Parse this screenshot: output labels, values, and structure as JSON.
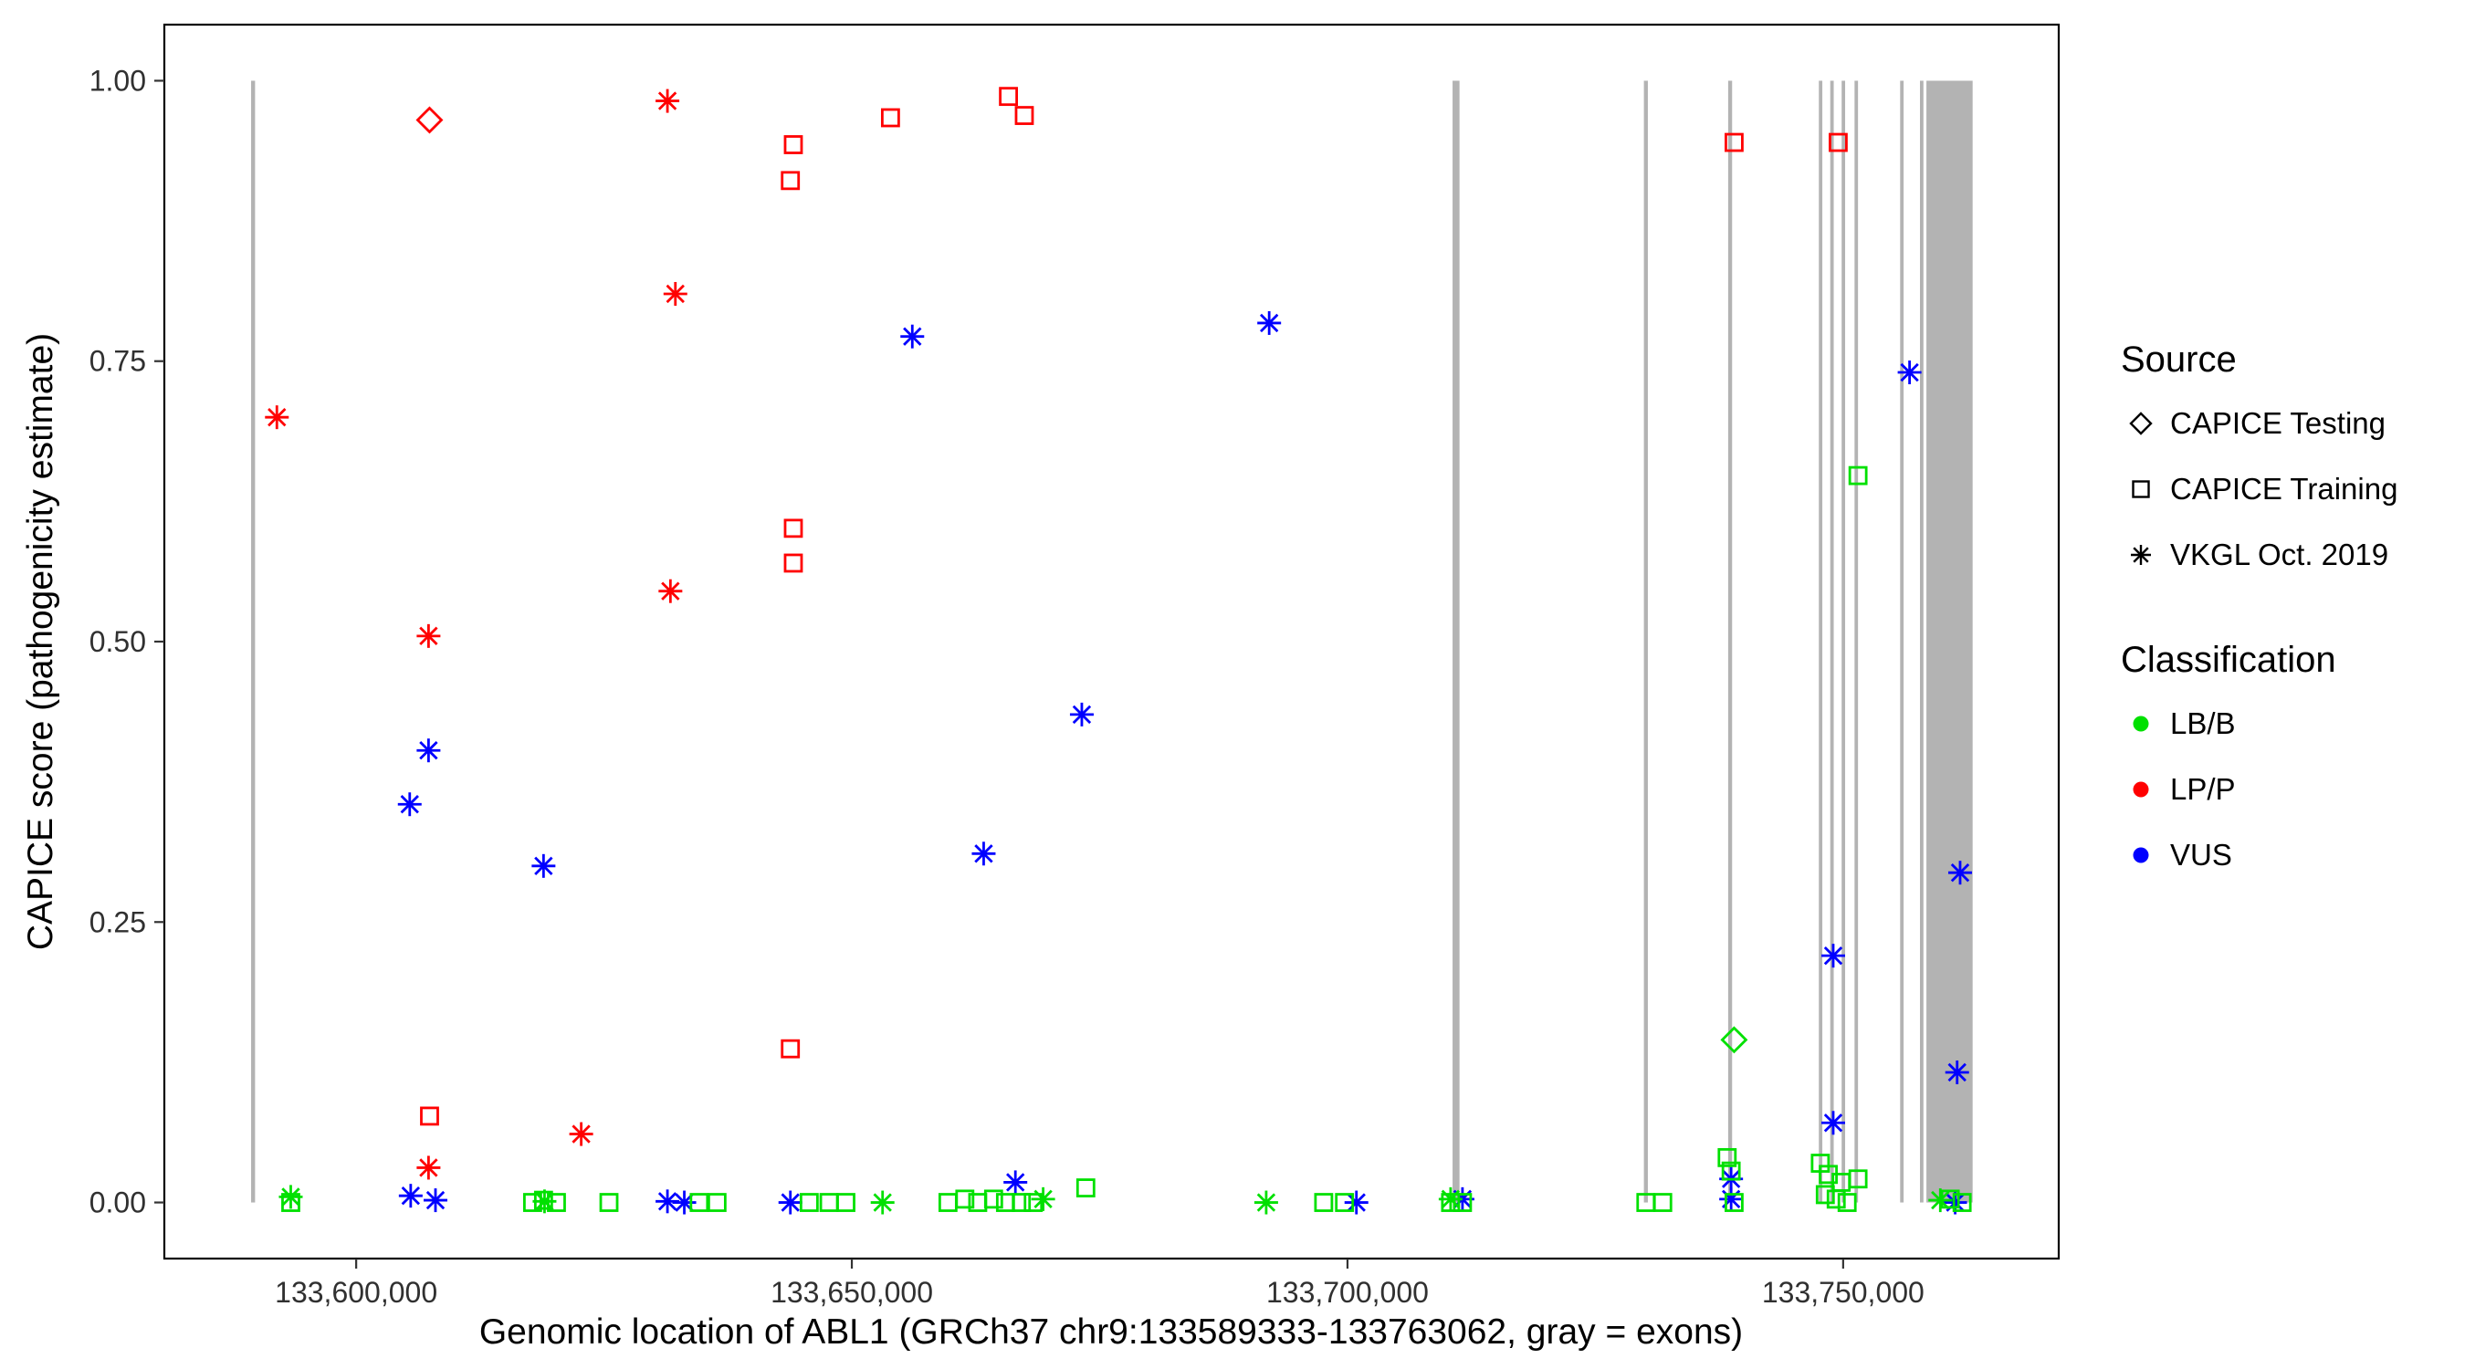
{
  "figure": {
    "background": "#FFFFFF"
  },
  "chart_data": {
    "type": "scatter",
    "title": "",
    "xlabel": "Genomic location of ABL1 (GRCh37 chr9:133589333-133763062, gray = exons)",
    "ylabel": "CAPICE score (pathogenicity estimate)",
    "xlim": [
      133580647,
      133771748
    ],
    "ylim": [
      -0.05,
      1.05
    ],
    "grid": false,
    "x_ticks": [
      {
        "value": 133600000,
        "label": "133,600,000"
      },
      {
        "value": 133650000,
        "label": "133,650,000"
      },
      {
        "value": 133700000,
        "label": "133,700,000"
      },
      {
        "value": 133750000,
        "label": "133,750,000"
      }
    ],
    "y_ticks": [
      {
        "value": 0.0,
        "label": "0.00"
      },
      {
        "value": 0.25,
        "label": "0.25"
      },
      {
        "value": 0.5,
        "label": "0.50"
      },
      {
        "value": 0.75,
        "label": "0.75"
      },
      {
        "value": 1.0,
        "label": "1.00"
      }
    ],
    "exon_color": "#B3B3B3",
    "exons": [
      [
        133589400,
        133589800
      ],
      [
        133710600,
        133711300
      ],
      [
        133729900,
        133730300
      ],
      [
        133738400,
        133738800
      ],
      [
        133747550,
        133747900
      ],
      [
        133748700,
        133749050
      ],
      [
        133749850,
        133750200
      ],
      [
        133751150,
        133751500
      ],
      [
        133755750,
        133756100
      ],
      [
        133757750,
        133758100
      ],
      [
        133758400,
        133763062
      ]
    ],
    "shape_by_source": {
      "testing": "diamond",
      "training": "square",
      "vkgl": "asterisk"
    },
    "source_names": {
      "testing": "CAPICE Testing",
      "training": "CAPICE Training",
      "vkgl": "VKGL Oct. 2019"
    },
    "color_by_classification": {
      "LB/B": "#00E000",
      "LP/P": "#FF0000",
      "VUS": "#0000FF"
    },
    "points_format": [
      "x",
      "y",
      "source",
      "classification"
    ],
    "points": [
      [
        133592000,
        0.7,
        "vkgl",
        "LP/P"
      ],
      [
        133607300,
        0.505,
        "vkgl",
        "LP/P"
      ],
      [
        133607300,
        0.031,
        "vkgl",
        "LP/P"
      ],
      [
        133622700,
        0.061,
        "vkgl",
        "LP/P"
      ],
      [
        133631400,
        0.982,
        "vkgl",
        "LP/P"
      ],
      [
        133632200,
        0.81,
        "vkgl",
        "LP/P"
      ],
      [
        133631700,
        0.545,
        "vkgl",
        "LP/P"
      ],
      [
        133607400,
        0.077,
        "training",
        "LP/P"
      ],
      [
        133644100,
        0.943,
        "training",
        "LP/P"
      ],
      [
        133643800,
        0.911,
        "training",
        "LP/P"
      ],
      [
        133653900,
        0.967,
        "training",
        "LP/P"
      ],
      [
        133665800,
        0.986,
        "training",
        "LP/P"
      ],
      [
        133667400,
        0.969,
        "training",
        "LP/P"
      ],
      [
        133644100,
        0.601,
        "training",
        "LP/P"
      ],
      [
        133644100,
        0.57,
        "training",
        "LP/P"
      ],
      [
        133643800,
        0.137,
        "training",
        "LP/P"
      ],
      [
        133739000,
        0.945,
        "training",
        "LP/P"
      ],
      [
        133749500,
        0.945,
        "training",
        "LP/P"
      ],
      [
        133607400,
        0.965,
        "testing",
        "LP/P"
      ],
      [
        133607300,
        0.403,
        "vkgl",
        "VUS"
      ],
      [
        133605400,
        0.355,
        "vkgl",
        "VUS"
      ],
      [
        133618900,
        0.3,
        "vkgl",
        "VUS"
      ],
      [
        133656100,
        0.772,
        "vkgl",
        "VUS"
      ],
      [
        133663300,
        0.311,
        "vkgl",
        "VUS"
      ],
      [
        133673200,
        0.435,
        "vkgl",
        "VUS"
      ],
      [
        133692100,
        0.784,
        "vkgl",
        "VUS"
      ],
      [
        133756700,
        0.74,
        "vkgl",
        "VUS"
      ],
      [
        133761800,
        0.294,
        "vkgl",
        "VUS"
      ],
      [
        133749000,
        0.22,
        "vkgl",
        "VUS"
      ],
      [
        133749000,
        0.071,
        "vkgl",
        "VUS"
      ],
      [
        133761500,
        0.116,
        "vkgl",
        "VUS"
      ],
      [
        133666500,
        0.018,
        "vkgl",
        "VUS"
      ],
      [
        133605500,
        0.006,
        "vkgl",
        "VUS"
      ],
      [
        133608000,
        0.002,
        "vkgl",
        "VUS"
      ],
      [
        133631400,
        0.001,
        "vkgl",
        "VUS"
      ],
      [
        133633100,
        0.0,
        "vkgl",
        "VUS"
      ],
      [
        133643800,
        0.0,
        "vkgl",
        "VUS"
      ],
      [
        133700900,
        0.0,
        "vkgl",
        "VUS"
      ],
      [
        133711600,
        0.003,
        "vkgl",
        "VUS"
      ],
      [
        133738700,
        0.021,
        "vkgl",
        "VUS"
      ],
      [
        133738700,
        0.003,
        "vkgl",
        "VUS"
      ],
      [
        133761300,
        0.0,
        "vkgl",
        "VUS"
      ],
      [
        133593400,
        0.005,
        "vkgl",
        "LB/B"
      ],
      [
        133619000,
        0.001,
        "vkgl",
        "LB/B"
      ],
      [
        133653100,
        0.0,
        "vkgl",
        "LB/B"
      ],
      [
        133669300,
        0.003,
        "vkgl",
        "LB/B"
      ],
      [
        133691800,
        0.0,
        "vkgl",
        "LB/B"
      ],
      [
        133710400,
        0.003,
        "vkgl",
        "LB/B"
      ],
      [
        133759800,
        0.002,
        "vkgl",
        "LB/B"
      ],
      [
        133593400,
        0.0,
        "training",
        "LB/B"
      ],
      [
        133617800,
        0.0,
        "training",
        "LB/B"
      ],
      [
        133618900,
        0.002,
        "training",
        "LB/B"
      ],
      [
        133620200,
        0.0,
        "training",
        "LB/B"
      ],
      [
        133625500,
        0.0,
        "training",
        "LB/B"
      ],
      [
        133634600,
        0.0,
        "training",
        "LB/B"
      ],
      [
        133636400,
        0.0,
        "training",
        "LB/B"
      ],
      [
        133645700,
        0.0,
        "training",
        "LB/B"
      ],
      [
        133647700,
        0.0,
        "training",
        "LB/B"
      ],
      [
        133649400,
        0.0,
        "training",
        "LB/B"
      ],
      [
        133659700,
        0.0,
        "training",
        "LB/B"
      ],
      [
        133661400,
        0.003,
        "training",
        "LB/B"
      ],
      [
        133662700,
        0.0,
        "training",
        "LB/B"
      ],
      [
        133664300,
        0.003,
        "training",
        "LB/B"
      ],
      [
        133665500,
        0.0,
        "training",
        "LB/B"
      ],
      [
        133667100,
        0.0,
        "training",
        "LB/B"
      ],
      [
        133668300,
        0.0,
        "training",
        "LB/B"
      ],
      [
        133673600,
        0.013,
        "training",
        "LB/B"
      ],
      [
        133697600,
        0.0,
        "training",
        "LB/B"
      ],
      [
        133699700,
        0.0,
        "training",
        "LB/B"
      ],
      [
        133710400,
        0.0,
        "training",
        "LB/B"
      ],
      [
        133711600,
        0.0,
        "training",
        "LB/B"
      ],
      [
        133730100,
        0.0,
        "training",
        "LB/B"
      ],
      [
        133731800,
        0.0,
        "training",
        "LB/B"
      ],
      [
        133738300,
        0.04,
        "training",
        "LB/B"
      ],
      [
        133738700,
        0.028,
        "training",
        "LB/B"
      ],
      [
        133739000,
        0.0,
        "training",
        "LB/B"
      ],
      [
        133747700,
        0.035,
        "training",
        "LB/B"
      ],
      [
        133748500,
        0.025,
        "training",
        "LB/B"
      ],
      [
        133749800,
        0.018,
        "training",
        "LB/B"
      ],
      [
        133751500,
        0.021,
        "training",
        "LB/B"
      ],
      [
        133748200,
        0.007,
        "training",
        "LB/B"
      ],
      [
        133749300,
        0.003,
        "training",
        "LB/B"
      ],
      [
        133750400,
        0.0,
        "training",
        "LB/B"
      ],
      [
        133760800,
        0.003,
        "training",
        "LB/B"
      ],
      [
        133762000,
        0.0,
        "training",
        "LB/B"
      ],
      [
        133751500,
        0.648,
        "training",
        "LB/B"
      ],
      [
        133739000,
        0.145,
        "testing",
        "LB/B"
      ]
    ]
  },
  "legend": {
    "source_title": "Source",
    "source_items": [
      {
        "label": "CAPICE Testing",
        "shape": "diamond"
      },
      {
        "label": "CAPICE Training",
        "shape": "square"
      },
      {
        "label": "VKGL Oct. 2019",
        "shape": "asterisk"
      }
    ],
    "classification_title": "Classification",
    "classification_items": [
      {
        "label": "LB/B",
        "color": "#00E000"
      },
      {
        "label": "LP/P",
        "color": "#FF0000"
      },
      {
        "label": "VUS",
        "color": "#0000FF"
      }
    ]
  }
}
